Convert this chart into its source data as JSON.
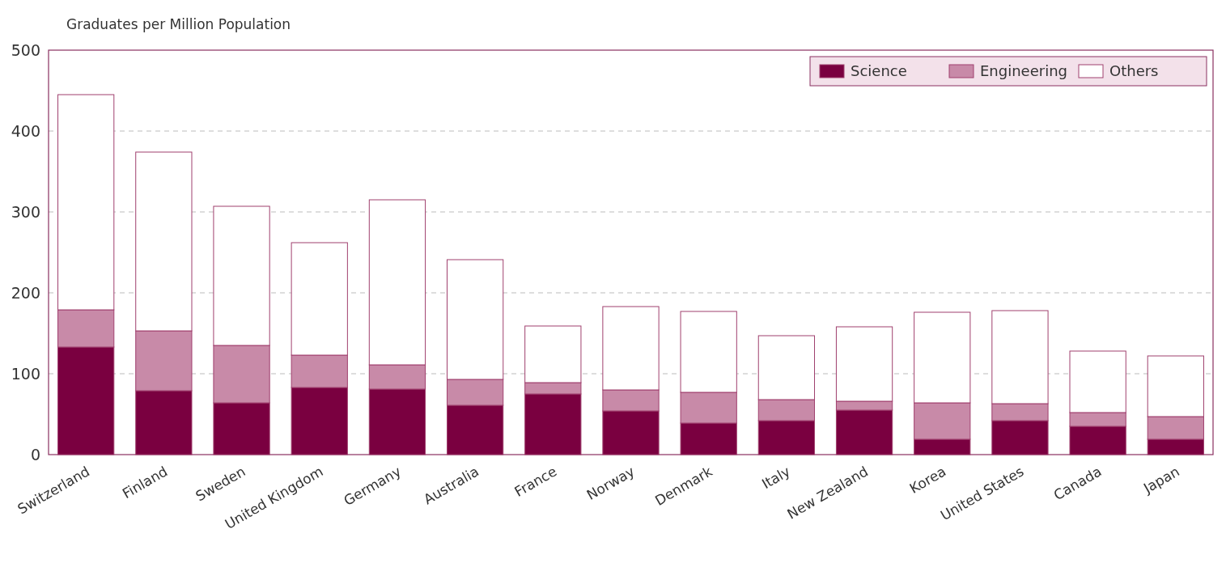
{
  "chart_data": {
    "type": "bar",
    "stacked": true,
    "ylabel": "Graduates per Million Population",
    "categories": [
      "Switzerland",
      "Finland",
      "Sweden",
      "United Kingdom",
      "Germany",
      "Australia",
      "France",
      "Norway",
      "Denmark",
      "Italy",
      "New Zealand",
      "Korea",
      "United States",
      "Canada",
      "Japan"
    ],
    "series": [
      {
        "name": "Science",
        "color": "#7a0040",
        "values": [
          133,
          79,
          64,
          83,
          81,
          61,
          75,
          54,
          39,
          42,
          55,
          19,
          42,
          35,
          19
        ]
      },
      {
        "name": "Engineering",
        "color": "#c88aa8",
        "values": [
          46,
          74,
          71,
          40,
          30,
          32,
          14,
          26,
          38,
          26,
          11,
          45,
          21,
          17,
          28
        ]
      },
      {
        "name": "Others",
        "color": "#ffffff",
        "values": [
          266,
          221,
          172,
          139,
          204,
          148,
          70,
          103,
          100,
          79,
          92,
          112,
          115,
          76,
          75
        ]
      }
    ],
    "ylim": [
      0,
      500
    ],
    "yticks": [
      0,
      100,
      200,
      300,
      400,
      500
    ],
    "grid": "y",
    "legend": "top right"
  }
}
